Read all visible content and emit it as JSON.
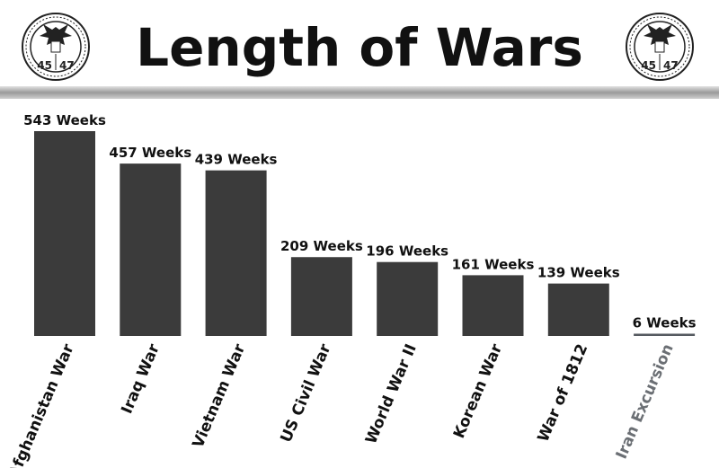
{
  "chart_data": {
    "type": "bar",
    "title": "Length of Wars",
    "xlabel": "",
    "ylabel": "",
    "value_suffix": " Weeks",
    "categories": [
      "Afghanistan War",
      "Iraq War",
      "Vietnam War",
      "US Civil War",
      "World War II",
      "Korean War",
      "War of 1812",
      "Iran Excursion"
    ],
    "values": [
      543,
      457,
      439,
      209,
      196,
      161,
      139,
      6
    ],
    "value_labels": [
      "543 Weeks",
      "457 Weeks",
      "439 Weeks",
      "209 Weeks",
      "196 Weeks",
      "161 Weeks",
      "139 Weeks",
      "6 Weeks"
    ],
    "ylim": [
      0,
      543
    ],
    "grid": false,
    "legend": "none"
  },
  "seal": {
    "left_text": "45",
    "right_text": "47"
  },
  "colors": {
    "bar": "#3b3b3b",
    "highlight_bar": "#555a60",
    "highlight_label": "#6b6f74",
    "text": "#111111",
    "seal": "#222222"
  }
}
